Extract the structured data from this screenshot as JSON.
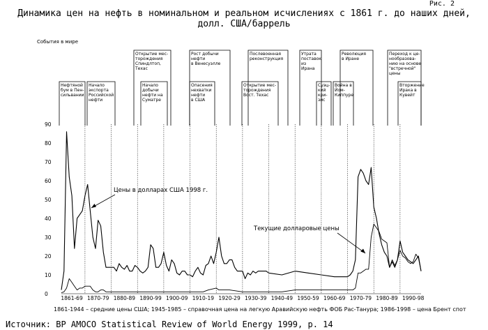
{
  "figure_label": "Рис. 2",
  "title_line1": "Динамика цен на нефть в номинальном и реальном исчислениях с 1861 г. до наших дней,",
  "title_line2": "долл. США/баррель",
  "events_heading": "События в мире",
  "events_top": [
    {
      "lines": [
        "Открытие мес-",
        "торождения",
        "Спиндлтоп,",
        "Техас"
      ]
    },
    {
      "lines": [
        "Рост добычи",
        "нефти",
        "в Венесуэлле"
      ]
    },
    {
      "lines": [
        "Послевоенная",
        "реконструкция"
      ]
    },
    {
      "lines": [
        "Утрата",
        "поставок",
        "из",
        "Ирана"
      ]
    },
    {
      "lines": [
        "Революция",
        "в Иране"
      ]
    },
    {
      "lines": [
        "Переход к це-",
        "нообразова-",
        "нию на основе",
        "\"встречной\"",
        "цены"
      ]
    }
  ],
  "events_bottom": [
    {
      "lines": [
        "Нефтяной",
        "бум в Пен-",
        "сильвании"
      ]
    },
    {
      "lines": [
        "Начало",
        "экспорта",
        "Российской",
        "нефти"
      ]
    },
    {
      "lines": [
        "Начало",
        "добычи",
        "нефти на",
        "Суматре"
      ]
    },
    {
      "lines": [
        "Опасения",
        "нехватки",
        "нефти",
        "в США"
      ]
    },
    {
      "lines": [
        "Открытие мес-",
        "торождения",
        "Вост. Техас"
      ]
    },
    {
      "lines": [
        "Суэц-",
        "кий",
        "кри-",
        "зис"
      ]
    },
    {
      "lines": [
        "Война в",
        "Йом-",
        "Киппуре"
      ]
    },
    {
      "lines": [
        "Вторжение",
        "Ирака в",
        "Кувейт"
      ]
    }
  ],
  "footnote": "1861-1944 – средние цены США; 1945-1985 – справочная цена на легкую Аравийскую нефть ФОБ Рас-Танура; 1986-1998 – цена Брент спот",
  "source": "Источник: BP AMOCO Statistical Review of World Energy 1999,  p. 14",
  "colors": {
    "line": "#000000",
    "grid": "#000000",
    "background": "#ffffff"
  },
  "chart_data": {
    "type": "line",
    "title": "Динамика цен на нефть в номинальном и реальном исчислениях с 1861 г. до наших дней, долл. США/баррель",
    "xlabel": "",
    "ylabel": "",
    "xlim": [
      1861,
      1998
    ],
    "ylim": [
      0,
      90
    ],
    "y_ticks": [
      0,
      10,
      20,
      30,
      40,
      50,
      60,
      70,
      80,
      90
    ],
    "x_categories": [
      "1861-69",
      "1870-79",
      "1880-89",
      "1890-99",
      "1900-09",
      "1910-19",
      "1920-29",
      "1930-39",
      "1940-49",
      "1950-59",
      "1960-69",
      "1970-79",
      "1980-89",
      "1990-98"
    ],
    "grid": "vertical",
    "series": [
      {
        "name": "Цены в долларах США 1998 г.",
        "x": [
          1861,
          1862,
          1863,
          1864,
          1865,
          1866,
          1867,
          1868,
          1869,
          1870,
          1871,
          1872,
          1873,
          1874,
          1875,
          1876,
          1877,
          1878,
          1879,
          1880,
          1881,
          1882,
          1883,
          1884,
          1885,
          1886,
          1887,
          1888,
          1889,
          1890,
          1891,
          1892,
          1893,
          1894,
          1895,
          1896,
          1897,
          1898,
          1899,
          1900,
          1901,
          1902,
          1903,
          1904,
          1905,
          1906,
          1907,
          1908,
          1909,
          1910,
          1911,
          1912,
          1913,
          1914,
          1915,
          1916,
          1917,
          1918,
          1919,
          1920,
          1921,
          1922,
          1923,
          1924,
          1925,
          1926,
          1927,
          1928,
          1929,
          1930,
          1931,
          1932,
          1933,
          1934,
          1935,
          1936,
          1937,
          1938,
          1939,
          1940,
          1945,
          1950,
          1955,
          1960,
          1965,
          1970,
          1971,
          1972,
          1973,
          1974,
          1975,
          1976,
          1977,
          1978,
          1979,
          1980,
          1981,
          1982,
          1983,
          1984,
          1985,
          1986,
          1987,
          1988,
          1989,
          1990,
          1991,
          1992,
          1993,
          1994,
          1995,
          1996,
          1997,
          1998
        ],
        "values": [
          2,
          12,
          86,
          62,
          52,
          24,
          40,
          42,
          44,
          52,
          58,
          44,
          30,
          24,
          39,
          36,
          22,
          14,
          14,
          14,
          14,
          12,
          16,
          14,
          13,
          15,
          12,
          12,
          15,
          14,
          12,
          11,
          12,
          14,
          26,
          24,
          14,
          14,
          16,
          22,
          15,
          12,
          18,
          16,
          11,
          10,
          12,
          12,
          10,
          10,
          9,
          12,
          14,
          11,
          10,
          15,
          16,
          20,
          16,
          22,
          30,
          20,
          16,
          16,
          18,
          18,
          14,
          12,
          12,
          12,
          8,
          11,
          10,
          12,
          11,
          12,
          12,
          12,
          12,
          11,
          10,
          12,
          11,
          10,
          9,
          9,
          10,
          12,
          18,
          62,
          66,
          64,
          60,
          58,
          67,
          46,
          40,
          32,
          26,
          22,
          20,
          14,
          17,
          14,
          18,
          28,
          22,
          20,
          18,
          17,
          16,
          18,
          20,
          12
        ]
      },
      {
        "name": "Текущие долларовые цены",
        "x": [
          1861,
          1862,
          1863,
          1864,
          1865,
          1866,
          1867,
          1868,
          1869,
          1870,
          1871,
          1872,
          1873,
          1874,
          1875,
          1876,
          1877,
          1878,
          1879,
          1880,
          1890,
          1895,
          1900,
          1905,
          1910,
          1915,
          1917,
          1920,
          1921,
          1925,
          1930,
          1931,
          1935,
          1940,
          1945,
          1950,
          1955,
          1960,
          1965,
          1970,
          1971,
          1972,
          1973,
          1974,
          1975,
          1976,
          1977,
          1978,
          1979,
          1980,
          1981,
          1982,
          1983,
          1984,
          1985,
          1986,
          1987,
          1988,
          1989,
          1990,
          1991,
          1992,
          1993,
          1994,
          1995,
          1996,
          1997,
          1998
        ],
        "values": [
          0.5,
          1,
          3,
          8,
          6,
          4,
          2,
          3,
          3,
          4,
          4,
          4,
          2,
          1,
          1,
          2,
          2,
          1,
          1,
          1,
          1,
          1,
          1,
          1,
          1,
          1,
          2,
          3,
          2,
          2,
          1,
          1,
          1,
          1,
          1,
          2,
          2,
          2,
          2,
          2,
          2,
          2,
          3,
          11,
          11,
          12,
          13,
          13,
          30,
          37,
          35,
          33,
          29,
          28,
          27,
          14,
          18,
          15,
          18,
          23,
          20,
          19,
          17,
          16,
          17,
          21,
          19,
          12
        ]
      }
    ],
    "annotations": [
      "Цены в долларах США 1998 г.",
      "Текущие долларовые цены"
    ]
  }
}
